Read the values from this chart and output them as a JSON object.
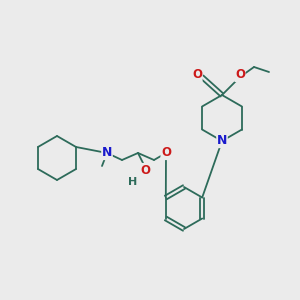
{
  "background_color": "#ebebeb",
  "bond_color": "#2d6b5a",
  "atom_colors": {
    "N": "#1a1acc",
    "O": "#cc1a1a",
    "H": "#2d6b5a"
  },
  "figsize": [
    3.0,
    3.0
  ],
  "dpi": 100
}
